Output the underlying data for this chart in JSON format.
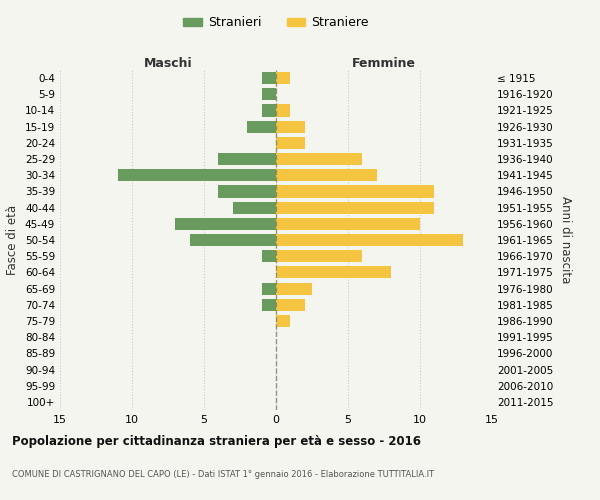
{
  "age_groups": [
    "0-4",
    "5-9",
    "10-14",
    "15-19",
    "20-24",
    "25-29",
    "30-34",
    "35-39",
    "40-44",
    "45-49",
    "50-54",
    "55-59",
    "60-64",
    "65-69",
    "70-74",
    "75-79",
    "80-84",
    "85-89",
    "90-94",
    "95-99",
    "100+"
  ],
  "birth_years": [
    "2011-2015",
    "2006-2010",
    "2001-2005",
    "1996-2000",
    "1991-1995",
    "1986-1990",
    "1981-1985",
    "1976-1980",
    "1971-1975",
    "1966-1970",
    "1961-1965",
    "1956-1960",
    "1951-1955",
    "1946-1950",
    "1941-1945",
    "1936-1940",
    "1931-1935",
    "1926-1930",
    "1921-1925",
    "1916-1920",
    "≤ 1915"
  ],
  "males": [
    1,
    1,
    1,
    2,
    0,
    4,
    11,
    4,
    3,
    7,
    6,
    1,
    0,
    1,
    1,
    0,
    0,
    0,
    0,
    0,
    0
  ],
  "females": [
    1,
    0,
    1,
    2,
    2,
    6,
    7,
    11,
    11,
    10,
    13,
    6,
    8,
    2.5,
    2,
    1,
    0,
    0,
    0,
    0,
    0
  ],
  "male_color": "#6a9b5e",
  "female_color": "#f5c542",
  "xlim": 15,
  "title": "Popolazione per cittadinanza straniera per età e sesso - 2016",
  "subtitle": "COMUNE DI CASTRIGNANO DEL CAPO (LE) - Dati ISTAT 1° gennaio 2016 - Elaborazione TUTTITALIA.IT",
  "xlabel_left": "Maschi",
  "xlabel_right": "Femmine",
  "ylabel_left": "Fasce di età",
  "ylabel_right": "Anni di nascita",
  "legend_male": "Stranieri",
  "legend_female": "Straniere",
  "background_color": "#f5f5f0",
  "grid_color": "#cccccc"
}
